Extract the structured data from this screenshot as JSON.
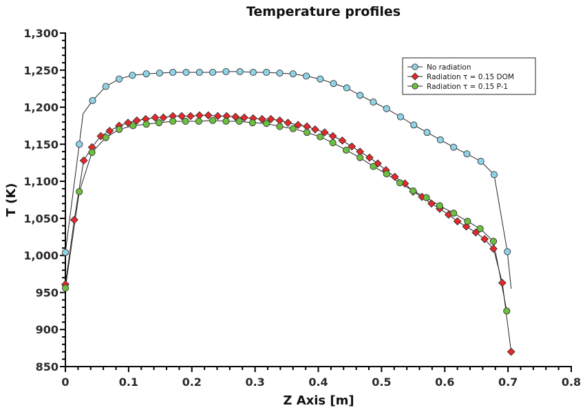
{
  "chart_data": {
    "type": "line",
    "title": "Temperature profiles",
    "xlabel": "Z Axis [m]",
    "ylabel": "T (K)",
    "xlim": [
      0,
      0.8
    ],
    "ylim": [
      850,
      1300
    ],
    "x_ticks": [
      0,
      0.1,
      0.2,
      0.3,
      0.4,
      0.5,
      0.6,
      0.7,
      0.8
    ],
    "x_tick_labels": [
      "0",
      "0.1",
      "0.2",
      "0.3",
      "0.4",
      "0.5",
      "0.6",
      "0.7",
      "0.8"
    ],
    "y_ticks": [
      850,
      900,
      950,
      1000,
      1050,
      1100,
      1150,
      1200,
      1250,
      1300
    ],
    "y_tick_labels": [
      "850",
      "900",
      "950",
      "1,000",
      "1,050",
      "1,100",
      "1,150",
      "1,200",
      "1,250",
      "1,300"
    ],
    "grid": false,
    "legend_position": "top-right",
    "series": [
      {
        "name": "No radiation",
        "marker": "circle",
        "color": "#8fd3e6",
        "x": [
          0,
          0.022,
          0.043,
          0.064,
          0.085,
          0.106,
          0.128,
          0.149,
          0.17,
          0.191,
          0.212,
          0.233,
          0.254,
          0.276,
          0.297,
          0.318,
          0.339,
          0.36,
          0.381,
          0.403,
          0.424,
          0.445,
          0.466,
          0.487,
          0.508,
          0.53,
          0.551,
          0.572,
          0.593,
          0.614,
          0.635,
          0.657,
          0.678,
          0.699
        ],
        "y": [
          1004,
          1150,
          1209,
          1228,
          1238,
          1243,
          1245,
          1246,
          1247,
          1247,
          1247,
          1247,
          1248,
          1248,
          1247,
          1247,
          1246,
          1245,
          1242,
          1238,
          1232,
          1226,
          1216,
          1207,
          1198,
          1187,
          1176,
          1166,
          1156,
          1146,
          1137,
          1127,
          1109,
          1005
        ],
        "line_extra": {
          "after_first_two": [
            0.028,
            1191
          ],
          "end": [
            0.705,
            955
          ]
        }
      },
      {
        "name": "Radiation τ = 0.15 DOM",
        "marker": "diamond",
        "color": "#e8272a",
        "x": [
          0,
          0.014,
          0.029,
          0.042,
          0.056,
          0.07,
          0.085,
          0.099,
          0.113,
          0.127,
          0.142,
          0.155,
          0.17,
          0.184,
          0.198,
          0.212,
          0.226,
          0.241,
          0.255,
          0.269,
          0.283,
          0.297,
          0.311,
          0.325,
          0.339,
          0.352,
          0.368,
          0.382,
          0.395,
          0.41,
          0.423,
          0.438,
          0.453,
          0.466,
          0.481,
          0.494,
          0.507,
          0.521,
          0.537,
          0.55,
          0.564,
          0.579,
          0.592,
          0.606,
          0.62,
          0.634,
          0.649,
          0.663,
          0.677,
          0.691,
          0.705
        ],
        "y": [
          961,
          1048,
          1128,
          1146,
          1161,
          1168,
          1175,
          1179,
          1182,
          1184,
          1186,
          1186,
          1188,
          1188,
          1188,
          1189,
          1189,
          1188,
          1188,
          1187,
          1186,
          1185,
          1184,
          1184,
          1182,
          1179,
          1176,
          1174,
          1170,
          1166,
          1161,
          1155,
          1147,
          1140,
          1132,
          1124,
          1115,
          1106,
          1097,
          1086,
          1079,
          1070,
          1063,
          1055,
          1046,
          1039,
          1031,
          1022,
          1009,
          963,
          870
        ]
      },
      {
        "name": "Radiation τ = 0.15 P-1",
        "marker": "circle",
        "color": "#6cbf3f",
        "x": [
          0,
          0.022,
          0.042,
          0.064,
          0.085,
          0.107,
          0.128,
          0.148,
          0.17,
          0.19,
          0.211,
          0.233,
          0.254,
          0.275,
          0.296,
          0.318,
          0.339,
          0.36,
          0.382,
          0.403,
          0.423,
          0.444,
          0.466,
          0.487,
          0.508,
          0.529,
          0.55,
          0.571,
          0.592,
          0.614,
          0.636,
          0.656,
          0.677,
          0.698
        ],
        "y": [
          956,
          1086,
          1139,
          1159,
          1170,
          1175,
          1177,
          1179,
          1181,
          1181,
          1181,
          1182,
          1181,
          1181,
          1179,
          1178,
          1174,
          1171,
          1166,
          1160,
          1152,
          1142,
          1132,
          1120,
          1110,
          1098,
          1087,
          1078,
          1067,
          1057,
          1046,
          1036,
          1019,
          925
        ]
      }
    ]
  }
}
